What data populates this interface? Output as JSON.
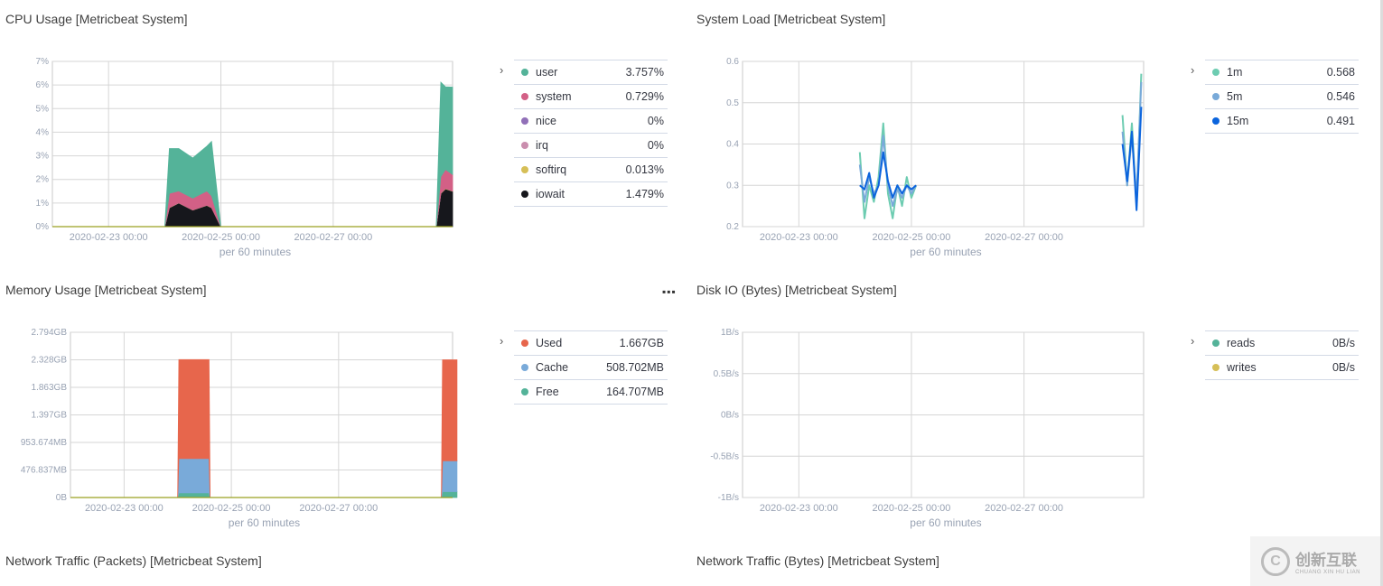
{
  "panels": {
    "cpu": {
      "title": "CPU Usage [Metricbeat System]",
      "legend": [
        {
          "label": "user",
          "value": "3.757%",
          "color": "#54b399"
        },
        {
          "label": "system",
          "value": "0.729%",
          "color": "#d36086"
        },
        {
          "label": "nice",
          "value": "0%",
          "color": "#9170b8"
        },
        {
          "label": "irq",
          "value": "0%",
          "color": "#ca8eae"
        },
        {
          "label": "softirq",
          "value": "0.013%",
          "color": "#d6bf57"
        },
        {
          "label": "iowait",
          "value": "1.479%",
          "color": "#16171c"
        }
      ]
    },
    "load": {
      "title": "System Load [Metricbeat System]",
      "legend": [
        {
          "label": "1m",
          "value": "0.568",
          "color": "#6dccb1"
        },
        {
          "label": "5m",
          "value": "0.546",
          "color": "#79aad9"
        },
        {
          "label": "15m",
          "value": "0.491",
          "color": "#0b64dd"
        }
      ]
    },
    "memory": {
      "title": "Memory Usage [Metricbeat System]",
      "legend": [
        {
          "label": "Used",
          "value": "1.667GB",
          "color": "#e7664c"
        },
        {
          "label": "Cache",
          "value": "508.702MB",
          "color": "#79aad9"
        },
        {
          "label": "Free",
          "value": "164.707MB",
          "color": "#54b399"
        }
      ]
    },
    "disk": {
      "title": "Disk IO (Bytes) [Metricbeat System]",
      "legend": [
        {
          "label": "reads",
          "value": "0B/s",
          "color": "#54b399"
        },
        {
          "label": "writes",
          "value": "0B/s",
          "color": "#d6bf57"
        }
      ]
    },
    "net_packets": {
      "title": "Network Traffic (Packets) [Metricbeat System]"
    },
    "net_bytes": {
      "title": "Network Traffic (Bytes) [Metricbeat System]"
    }
  },
  "watermark": {
    "main": "创新互联",
    "sub": "CHUANG XIN HU LIAN"
  },
  "chart_data": [
    {
      "type": "area",
      "title": "CPU Usage [Metricbeat System]",
      "xlabel": "per 60 minutes",
      "x_ticks": [
        "2020-02-23 00:00",
        "2020-02-25 00:00",
        "2020-02-27 00:00"
      ],
      "y_ticks": [
        "0%",
        "1%",
        "2%",
        "3%",
        "4%",
        "5%",
        "6%",
        "7%"
      ],
      "ylim": [
        0,
        7
      ],
      "x": [
        "2020-02-22 00:00",
        "2020-02-24 00:00",
        "2020-02-24 02:00",
        "2020-02-24 06:00",
        "2020-02-24 12:00",
        "2020-02-24 18:00",
        "2020-02-24 20:00",
        "2020-02-25 00:00",
        "2020-02-28 20:00",
        "2020-02-28 22:00",
        "2020-02-29 00:00",
        "2020-02-29 03:00"
      ],
      "series": [
        {
          "name": "iowait",
          "values": [
            0,
            0,
            0.8,
            1.0,
            0.7,
            0.9,
            0.8,
            0,
            0,
            1.4,
            1.6,
            1.5
          ]
        },
        {
          "name": "softirq",
          "values": [
            0,
            0,
            0.01,
            0.01,
            0.01,
            0.01,
            0.01,
            0,
            0,
            0.02,
            0.02,
            0.01
          ]
        },
        {
          "name": "irq",
          "values": [
            0,
            0,
            0,
            0,
            0,
            0,
            0,
            0,
            0,
            0,
            0,
            0
          ]
        },
        {
          "name": "nice",
          "values": [
            0,
            0,
            0,
            0,
            0,
            0,
            0,
            0,
            0,
            0,
            0,
            0
          ]
        },
        {
          "name": "system",
          "values": [
            0,
            0,
            0.6,
            0.5,
            0.5,
            0.6,
            0.5,
            0,
            0,
            0.7,
            0.8,
            0.7
          ]
        },
        {
          "name": "user",
          "values": [
            0,
            0,
            1.9,
            1.8,
            1.7,
            1.9,
            2.3,
            0,
            0,
            4.0,
            3.5,
            3.7
          ]
        }
      ]
    },
    {
      "type": "line",
      "title": "System Load [Metricbeat System]",
      "xlabel": "per 60 minutes",
      "x_ticks": [
        "2020-02-23 00:00",
        "2020-02-25 00:00",
        "2020-02-27 00:00"
      ],
      "y_ticks": [
        "0.2",
        "0.3",
        "0.4",
        "0.5",
        "0.6"
      ],
      "ylim": [
        0.2,
        0.6
      ],
      "segments": [
        {
          "x": [
            "2020-02-24 02:00",
            "2020-02-24 04:00",
            "2020-02-24 06:00",
            "2020-02-24 08:00",
            "2020-02-24 10:00",
            "2020-02-24 12:00",
            "2020-02-24 14:00",
            "2020-02-24 16:00",
            "2020-02-24 18:00",
            "2020-02-24 20:00",
            "2020-02-24 22:00",
            "2020-02-25 00:00",
            "2020-02-25 02:00"
          ]
        },
        {
          "x": [
            "2020-02-28 18:00",
            "2020-02-28 20:00",
            "2020-02-28 22:00",
            "2020-02-29 00:00",
            "2020-02-29 02:00"
          ]
        }
      ],
      "series": [
        {
          "name": "1m",
          "segments": [
            [
              0.38,
              0.22,
              0.3,
              0.26,
              0.32,
              0.45,
              0.28,
              0.22,
              0.3,
              0.25,
              0.32,
              0.27,
              0.3
            ],
            [
              0.47,
              0.3,
              0.45,
              0.25,
              0.57
            ]
          ]
        },
        {
          "name": "5m",
          "segments": [
            [
              0.35,
              0.26,
              0.32,
              0.28,
              0.3,
              0.42,
              0.3,
              0.25,
              0.29,
              0.27,
              0.3,
              0.28,
              0.3
            ],
            [
              0.43,
              0.3,
              0.42,
              0.27,
              0.55
            ]
          ]
        },
        {
          "name": "15m",
          "segments": [
            [
              0.3,
              0.29,
              0.33,
              0.27,
              0.3,
              0.38,
              0.31,
              0.27,
              0.3,
              0.28,
              0.3,
              0.29,
              0.3
            ],
            [
              0.4,
              0.31,
              0.43,
              0.24,
              0.49
            ]
          ]
        }
      ]
    },
    {
      "type": "area",
      "title": "Memory Usage [Metricbeat System]",
      "xlabel": "per 60 minutes",
      "x_ticks": [
        "2020-02-23 00:00",
        "2020-02-25 00:00",
        "2020-02-27 00:00"
      ],
      "y_ticks": [
        "0B",
        "476.837MB",
        "953.674MB",
        "1.397GB",
        "1.863GB",
        "2.328GB",
        "2.794GB"
      ],
      "ylim": [
        0,
        2.794
      ],
      "unit": "GB",
      "x": [
        "2020-02-22 00:00",
        "2020-02-24 00:00",
        "2020-02-24 00:30",
        "2020-02-24 14:00",
        "2020-02-24 14:30",
        "2020-02-28 22:00",
        "2020-02-28 22:30",
        "2020-02-29 05:00"
      ],
      "series": [
        {
          "name": "Free",
          "values": [
            0,
            0,
            0.08,
            0.08,
            0,
            0,
            0.1,
            0.1
          ]
        },
        {
          "name": "Cache",
          "values": [
            0,
            0,
            0.58,
            0.58,
            0,
            0,
            0.52,
            0.52
          ]
        },
        {
          "name": "Used",
          "values": [
            0,
            0,
            1.672,
            1.672,
            0,
            0,
            1.708,
            1.708
          ]
        }
      ]
    },
    {
      "type": "line",
      "title": "Disk IO (Bytes) [Metricbeat System]",
      "xlabel": "per 60 minutes",
      "x_ticks": [
        "2020-02-23 00:00",
        "2020-02-25 00:00",
        "2020-02-27 00:00"
      ],
      "y_ticks": [
        "-1B/s",
        "-0.5B/s",
        "0B/s",
        "0.5B/s",
        "1B/s"
      ],
      "ylim": [
        -1,
        1
      ],
      "series": [
        {
          "name": "reads",
          "values": []
        },
        {
          "name": "writes",
          "values": []
        }
      ]
    }
  ]
}
